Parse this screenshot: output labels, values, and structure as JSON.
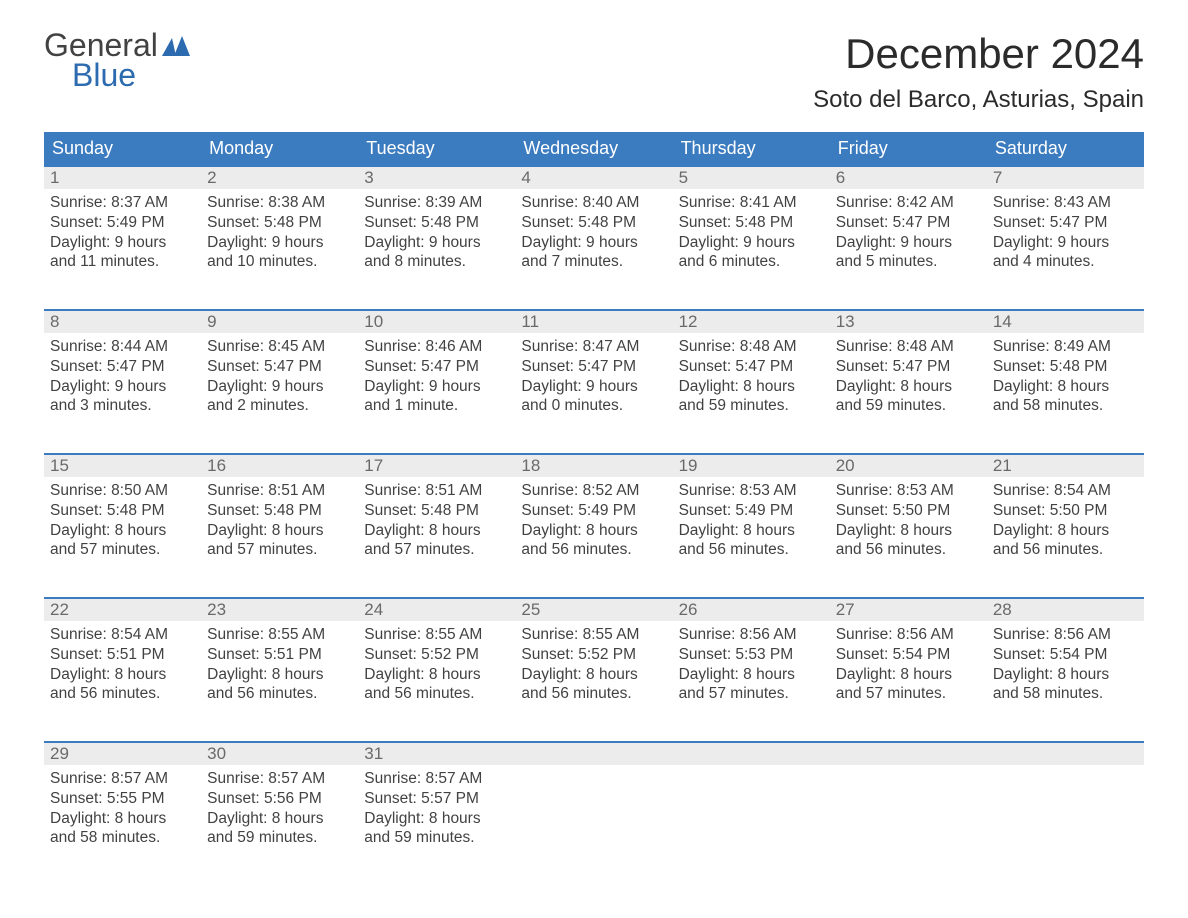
{
  "brand": {
    "word1": "General",
    "word2": "Blue",
    "accent_color": "#2c6bb0"
  },
  "title": {
    "month": "December 2024",
    "location": "Soto del Barco, Asturias, Spain"
  },
  "colors": {
    "header_bg": "#3b7bbf",
    "header_text": "#ffffff",
    "daynum_bg": "#ececec",
    "daynum_text": "#6a6a6a",
    "body_text": "#424242",
    "week_rule": "#3b7bbf",
    "page_bg": "#ffffff"
  },
  "typography": {
    "month_fontsize": 42,
    "location_fontsize": 24,
    "dow_fontsize": 18,
    "daynum_fontsize": 17,
    "body_fontsize": 15.5,
    "font_family": "Arial"
  },
  "days_of_week": [
    "Sunday",
    "Monday",
    "Tuesday",
    "Wednesday",
    "Thursday",
    "Friday",
    "Saturday"
  ],
  "weeks": [
    [
      {
        "n": "1",
        "sunrise": "Sunrise: 8:37 AM",
        "sunset": "Sunset: 5:49 PM",
        "d1": "Daylight: 9 hours",
        "d2": "and 11 minutes."
      },
      {
        "n": "2",
        "sunrise": "Sunrise: 8:38 AM",
        "sunset": "Sunset: 5:48 PM",
        "d1": "Daylight: 9 hours",
        "d2": "and 10 minutes."
      },
      {
        "n": "3",
        "sunrise": "Sunrise: 8:39 AM",
        "sunset": "Sunset: 5:48 PM",
        "d1": "Daylight: 9 hours",
        "d2": "and 8 minutes."
      },
      {
        "n": "4",
        "sunrise": "Sunrise: 8:40 AM",
        "sunset": "Sunset: 5:48 PM",
        "d1": "Daylight: 9 hours",
        "d2": "and 7 minutes."
      },
      {
        "n": "5",
        "sunrise": "Sunrise: 8:41 AM",
        "sunset": "Sunset: 5:48 PM",
        "d1": "Daylight: 9 hours",
        "d2": "and 6 minutes."
      },
      {
        "n": "6",
        "sunrise": "Sunrise: 8:42 AM",
        "sunset": "Sunset: 5:47 PM",
        "d1": "Daylight: 9 hours",
        "d2": "and 5 minutes."
      },
      {
        "n": "7",
        "sunrise": "Sunrise: 8:43 AM",
        "sunset": "Sunset: 5:47 PM",
        "d1": "Daylight: 9 hours",
        "d2": "and 4 minutes."
      }
    ],
    [
      {
        "n": "8",
        "sunrise": "Sunrise: 8:44 AM",
        "sunset": "Sunset: 5:47 PM",
        "d1": "Daylight: 9 hours",
        "d2": "and 3 minutes."
      },
      {
        "n": "9",
        "sunrise": "Sunrise: 8:45 AM",
        "sunset": "Sunset: 5:47 PM",
        "d1": "Daylight: 9 hours",
        "d2": "and 2 minutes."
      },
      {
        "n": "10",
        "sunrise": "Sunrise: 8:46 AM",
        "sunset": "Sunset: 5:47 PM",
        "d1": "Daylight: 9 hours",
        "d2": "and 1 minute."
      },
      {
        "n": "11",
        "sunrise": "Sunrise: 8:47 AM",
        "sunset": "Sunset: 5:47 PM",
        "d1": "Daylight: 9 hours",
        "d2": "and 0 minutes."
      },
      {
        "n": "12",
        "sunrise": "Sunrise: 8:48 AM",
        "sunset": "Sunset: 5:47 PM",
        "d1": "Daylight: 8 hours",
        "d2": "and 59 minutes."
      },
      {
        "n": "13",
        "sunrise": "Sunrise: 8:48 AM",
        "sunset": "Sunset: 5:47 PM",
        "d1": "Daylight: 8 hours",
        "d2": "and 59 minutes."
      },
      {
        "n": "14",
        "sunrise": "Sunrise: 8:49 AM",
        "sunset": "Sunset: 5:48 PM",
        "d1": "Daylight: 8 hours",
        "d2": "and 58 minutes."
      }
    ],
    [
      {
        "n": "15",
        "sunrise": "Sunrise: 8:50 AM",
        "sunset": "Sunset: 5:48 PM",
        "d1": "Daylight: 8 hours",
        "d2": "and 57 minutes."
      },
      {
        "n": "16",
        "sunrise": "Sunrise: 8:51 AM",
        "sunset": "Sunset: 5:48 PM",
        "d1": "Daylight: 8 hours",
        "d2": "and 57 minutes."
      },
      {
        "n": "17",
        "sunrise": "Sunrise: 8:51 AM",
        "sunset": "Sunset: 5:48 PM",
        "d1": "Daylight: 8 hours",
        "d2": "and 57 minutes."
      },
      {
        "n": "18",
        "sunrise": "Sunrise: 8:52 AM",
        "sunset": "Sunset: 5:49 PM",
        "d1": "Daylight: 8 hours",
        "d2": "and 56 minutes."
      },
      {
        "n": "19",
        "sunrise": "Sunrise: 8:53 AM",
        "sunset": "Sunset: 5:49 PM",
        "d1": "Daylight: 8 hours",
        "d2": "and 56 minutes."
      },
      {
        "n": "20",
        "sunrise": "Sunrise: 8:53 AM",
        "sunset": "Sunset: 5:50 PM",
        "d1": "Daylight: 8 hours",
        "d2": "and 56 minutes."
      },
      {
        "n": "21",
        "sunrise": "Sunrise: 8:54 AM",
        "sunset": "Sunset: 5:50 PM",
        "d1": "Daylight: 8 hours",
        "d2": "and 56 minutes."
      }
    ],
    [
      {
        "n": "22",
        "sunrise": "Sunrise: 8:54 AM",
        "sunset": "Sunset: 5:51 PM",
        "d1": "Daylight: 8 hours",
        "d2": "and 56 minutes."
      },
      {
        "n": "23",
        "sunrise": "Sunrise: 8:55 AM",
        "sunset": "Sunset: 5:51 PM",
        "d1": "Daylight: 8 hours",
        "d2": "and 56 minutes."
      },
      {
        "n": "24",
        "sunrise": "Sunrise: 8:55 AM",
        "sunset": "Sunset: 5:52 PM",
        "d1": "Daylight: 8 hours",
        "d2": "and 56 minutes."
      },
      {
        "n": "25",
        "sunrise": "Sunrise: 8:55 AM",
        "sunset": "Sunset: 5:52 PM",
        "d1": "Daylight: 8 hours",
        "d2": "and 56 minutes."
      },
      {
        "n": "26",
        "sunrise": "Sunrise: 8:56 AM",
        "sunset": "Sunset: 5:53 PM",
        "d1": "Daylight: 8 hours",
        "d2": "and 57 minutes."
      },
      {
        "n": "27",
        "sunrise": "Sunrise: 8:56 AM",
        "sunset": "Sunset: 5:54 PM",
        "d1": "Daylight: 8 hours",
        "d2": "and 57 minutes."
      },
      {
        "n": "28",
        "sunrise": "Sunrise: 8:56 AM",
        "sunset": "Sunset: 5:54 PM",
        "d1": "Daylight: 8 hours",
        "d2": "and 58 minutes."
      }
    ],
    [
      {
        "n": "29",
        "sunrise": "Sunrise: 8:57 AM",
        "sunset": "Sunset: 5:55 PM",
        "d1": "Daylight: 8 hours",
        "d2": "and 58 minutes."
      },
      {
        "n": "30",
        "sunrise": "Sunrise: 8:57 AM",
        "sunset": "Sunset: 5:56 PM",
        "d1": "Daylight: 8 hours",
        "d2": "and 59 minutes."
      },
      {
        "n": "31",
        "sunrise": "Sunrise: 8:57 AM",
        "sunset": "Sunset: 5:57 PM",
        "d1": "Daylight: 8 hours",
        "d2": "and 59 minutes."
      },
      {
        "empty": true
      },
      {
        "empty": true
      },
      {
        "empty": true
      },
      {
        "empty": true
      }
    ]
  ]
}
